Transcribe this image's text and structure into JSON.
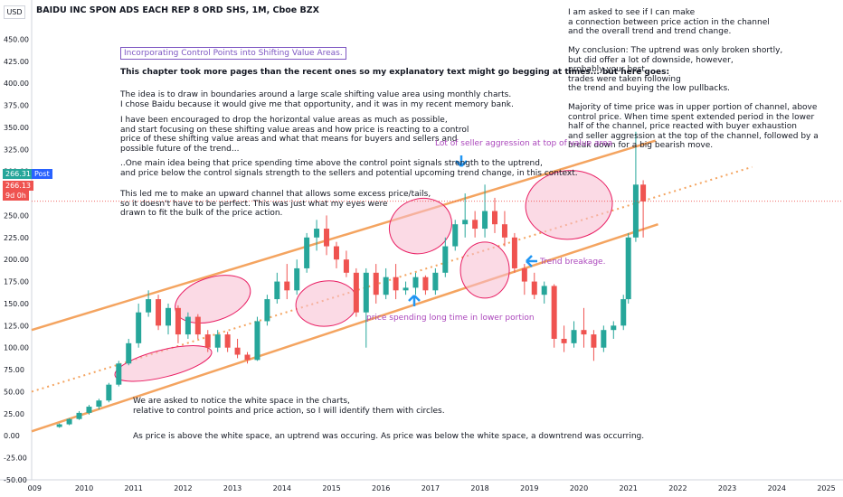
{
  "symbol_title": "BAIDU INC SPON ADS EACH REP 8 ORD SHS, 1M, Cboe BZX",
  "currency_label": "USD",
  "price_tags": {
    "last": "266.31",
    "post_label": "Post",
    "close": "266.13",
    "countdown": "9d 0h"
  },
  "heading_box": "Incorporating Control Points into Shifting Value Areas.",
  "intro_line": "This chapter took more pages than the recent ones so my explanatory text might go begging at times... but here goes:",
  "para1": "The idea is to draw in boundaries around a large scale shifting value area using monthly charts.\nI chose Baidu because it would give me that opportunity, and it was in my recent memory bank.",
  "para2": "I have been encouraged to drop the horizontal value areas as much as possible,\nand start focusing on these shifting value areas and how price is reacting to a control\nprice of these shifting value areas and what that means for buyers and sellers and\npossible future of the trend...",
  "para3": "..One main idea being that price spending time above the control point signals strength to the uptrend,\nand price below the control signals strength to the sellers and potential upcoming trend change, in this context.",
  "para4": "This led me to make an upward channel that allows some excess price/tails,\nso it doesn't have to be perfect. This was just what my eyes were\ndrawn to fit the bulk of the price action.",
  "right_text": "I am asked to see if I can make\na connection between price action in the channel\nand the overall trend and trend change.\n\nMy conclusion: The uptrend was only broken shortly,\nbut did offer a lot of downside, however,\nprobably your best\ntrades were taken following\nthe trend and buying the low pullbacks.\n\nMajority of time price was in upper portion of channel, above\ncontrol price. When time spent extended period in the lower\nhalf of the channel, price reacted with buyer exhaustion\nand seller aggression at the top of the channel, followed by a\nbreak down for a big bearish move.",
  "bottom_text1": "We are asked to notice the white space in the charts,\nrelative to control points and price action, so I will identify them with circles.",
  "bottom_text2": "As price is above the white space, an uptrend was occuring. As price was below the white space, a downtrend was occurring.",
  "annotations": {
    "seller_aggression": "Lot of seller aggression at top of value area",
    "trend_breakage": "Trend breakage.",
    "lower_portion": "price spending long time in lower portion"
  },
  "colors": {
    "channel": "#f4a460",
    "up": "#26a69a",
    "down": "#ef5350",
    "ellipse_fill": "#f8bbd0",
    "ellipse_stroke": "#e91e63",
    "arrow": "#2196f3",
    "last_tag": "#26a69a",
    "close_tag": "#ef5350"
  },
  "chart_data": {
    "type": "candlestick",
    "ylim": [
      -50,
      475
    ],
    "y_ticks": [
      "450.00",
      "425.00",
      "400.00",
      "375.00",
      "350.00",
      "325.00",
      "300.00",
      "275.00",
      "250.00",
      "225.00",
      "200.00",
      "175.00",
      "150.00",
      "125.00",
      "100.00",
      "75.00",
      "50.00",
      "25.00",
      "0.00",
      "-25.00",
      "-50.00"
    ],
    "x_ticks": [
      "009",
      "2010",
      "2011",
      "2012",
      "2013",
      "2014",
      "2015",
      "2016",
      "2017",
      "2018",
      "2019",
      "2020",
      "2021",
      "2022",
      "2023",
      "2024",
      "2025"
    ],
    "series": [
      {
        "t": 2009.5,
        "o": 10,
        "h": 14,
        "l": 9,
        "c": 13
      },
      {
        "t": 2009.7,
        "o": 13,
        "h": 20,
        "l": 12,
        "c": 19
      },
      {
        "t": 2009.9,
        "o": 19,
        "h": 28,
        "l": 18,
        "c": 26
      },
      {
        "t": 2010.1,
        "o": 26,
        "h": 35,
        "l": 24,
        "c": 33
      },
      {
        "t": 2010.3,
        "o": 33,
        "h": 42,
        "l": 30,
        "c": 40
      },
      {
        "t": 2010.5,
        "o": 40,
        "h": 60,
        "l": 38,
        "c": 58
      },
      {
        "t": 2010.7,
        "o": 58,
        "h": 85,
        "l": 56,
        "c": 82
      },
      {
        "t": 2010.9,
        "o": 82,
        "h": 110,
        "l": 80,
        "c": 105
      },
      {
        "t": 2011.1,
        "o": 105,
        "h": 150,
        "l": 100,
        "c": 140
      },
      {
        "t": 2011.3,
        "o": 140,
        "h": 165,
        "l": 135,
        "c": 155
      },
      {
        "t": 2011.5,
        "o": 155,
        "h": 160,
        "l": 120,
        "c": 125
      },
      {
        "t": 2011.7,
        "o": 125,
        "h": 150,
        "l": 115,
        "c": 145
      },
      {
        "t": 2011.9,
        "o": 145,
        "h": 148,
        "l": 105,
        "c": 115
      },
      {
        "t": 2012.1,
        "o": 115,
        "h": 140,
        "l": 110,
        "c": 135
      },
      {
        "t": 2012.3,
        "o": 135,
        "h": 138,
        "l": 110,
        "c": 115
      },
      {
        "t": 2012.5,
        "o": 115,
        "h": 120,
        "l": 95,
        "c": 100
      },
      {
        "t": 2012.7,
        "o": 100,
        "h": 120,
        "l": 95,
        "c": 115
      },
      {
        "t": 2012.9,
        "o": 115,
        "h": 118,
        "l": 95,
        "c": 100
      },
      {
        "t": 2013.1,
        "o": 100,
        "h": 110,
        "l": 88,
        "c": 92
      },
      {
        "t": 2013.3,
        "o": 92,
        "h": 95,
        "l": 82,
        "c": 86
      },
      {
        "t": 2013.5,
        "o": 86,
        "h": 135,
        "l": 85,
        "c": 130
      },
      {
        "t": 2013.7,
        "o": 130,
        "h": 160,
        "l": 125,
        "c": 155
      },
      {
        "t": 2013.9,
        "o": 155,
        "h": 185,
        "l": 150,
        "c": 175
      },
      {
        "t": 2014.1,
        "o": 175,
        "h": 195,
        "l": 155,
        "c": 165
      },
      {
        "t": 2014.3,
        "o": 165,
        "h": 200,
        "l": 160,
        "c": 190
      },
      {
        "t": 2014.5,
        "o": 190,
        "h": 230,
        "l": 185,
        "c": 225
      },
      {
        "t": 2014.7,
        "o": 225,
        "h": 245,
        "l": 210,
        "c": 235
      },
      {
        "t": 2014.9,
        "o": 235,
        "h": 250,
        "l": 205,
        "c": 215
      },
      {
        "t": 2015.1,
        "o": 215,
        "h": 220,
        "l": 190,
        "c": 200
      },
      {
        "t": 2015.3,
        "o": 200,
        "h": 210,
        "l": 180,
        "c": 185
      },
      {
        "t": 2015.5,
        "o": 185,
        "h": 190,
        "l": 135,
        "c": 140
      },
      {
        "t": 2015.7,
        "o": 140,
        "h": 190,
        "l": 100,
        "c": 185
      },
      {
        "t": 2015.9,
        "o": 185,
        "h": 195,
        "l": 150,
        "c": 160
      },
      {
        "t": 2016.1,
        "o": 160,
        "h": 190,
        "l": 155,
        "c": 180
      },
      {
        "t": 2016.3,
        "o": 180,
        "h": 195,
        "l": 155,
        "c": 165
      },
      {
        "t": 2016.5,
        "o": 165,
        "h": 175,
        "l": 160,
        "c": 168
      },
      {
        "t": 2016.7,
        "o": 168,
        "h": 185,
        "l": 160,
        "c": 180
      },
      {
        "t": 2016.9,
        "o": 180,
        "h": 182,
        "l": 160,
        "c": 165
      },
      {
        "t": 2017.1,
        "o": 165,
        "h": 190,
        "l": 160,
        "c": 185
      },
      {
        "t": 2017.3,
        "o": 185,
        "h": 225,
        "l": 180,
        "c": 215
      },
      {
        "t": 2017.5,
        "o": 215,
        "h": 245,
        "l": 210,
        "c": 240
      },
      {
        "t": 2017.7,
        "o": 240,
        "h": 275,
        "l": 225,
        "c": 245
      },
      {
        "t": 2017.9,
        "o": 245,
        "h": 255,
        "l": 225,
        "c": 235
      },
      {
        "t": 2018.1,
        "o": 235,
        "h": 285,
        "l": 225,
        "c": 255
      },
      {
        "t": 2018.3,
        "o": 255,
        "h": 270,
        "l": 230,
        "c": 240
      },
      {
        "t": 2018.5,
        "o": 240,
        "h": 255,
        "l": 215,
        "c": 225
      },
      {
        "t": 2018.7,
        "o": 225,
        "h": 230,
        "l": 185,
        "c": 190
      },
      {
        "t": 2018.9,
        "o": 190,
        "h": 195,
        "l": 160,
        "c": 175
      },
      {
        "t": 2019.1,
        "o": 175,
        "h": 185,
        "l": 155,
        "c": 160
      },
      {
        "t": 2019.3,
        "o": 160,
        "h": 175,
        "l": 150,
        "c": 170
      },
      {
        "t": 2019.5,
        "o": 170,
        "h": 172,
        "l": 100,
        "c": 110
      },
      {
        "t": 2019.7,
        "o": 110,
        "h": 125,
        "l": 95,
        "c": 105
      },
      {
        "t": 2019.9,
        "o": 105,
        "h": 130,
        "l": 100,
        "c": 120
      },
      {
        "t": 2020.1,
        "o": 120,
        "h": 145,
        "l": 100,
        "c": 115
      },
      {
        "t": 2020.3,
        "o": 115,
        "h": 120,
        "l": 85,
        "c": 100
      },
      {
        "t": 2020.5,
        "o": 100,
        "h": 125,
        "l": 95,
        "c": 120
      },
      {
        "t": 2020.7,
        "o": 120,
        "h": 130,
        "l": 110,
        "c": 125
      },
      {
        "t": 2020.9,
        "o": 125,
        "h": 160,
        "l": 120,
        "c": 155
      },
      {
        "t": 2021.0,
        "o": 155,
        "h": 230,
        "l": 150,
        "c": 225
      },
      {
        "t": 2021.15,
        "o": 225,
        "h": 345,
        "l": 220,
        "c": 285
      },
      {
        "t": 2021.3,
        "o": 285,
        "h": 290,
        "l": 225,
        "c": 266
      }
    ]
  }
}
